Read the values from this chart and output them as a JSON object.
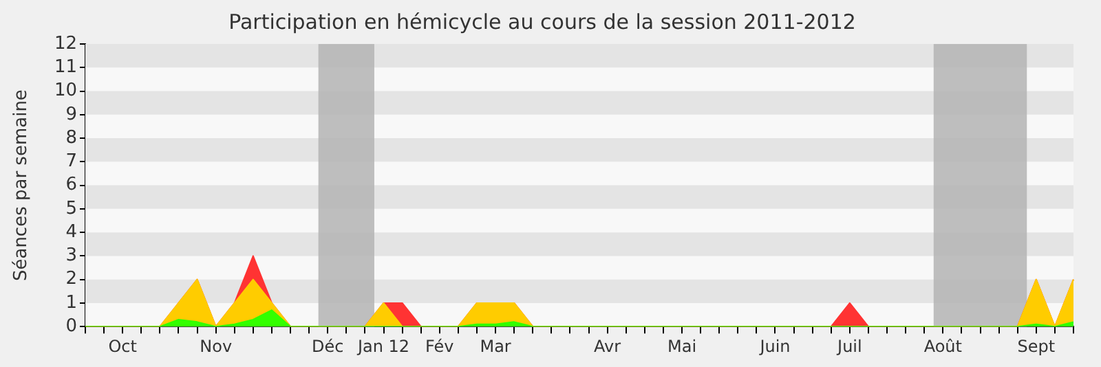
{
  "chart_data": {
    "type": "area",
    "title": "Participation en hémicycle au cours de la session 2011-2012",
    "ylabel": "Séances par semaine",
    "stacked": true,
    "legend": false,
    "marker": "none",
    "categories": [
      null,
      null,
      "Oct",
      null,
      null,
      null,
      null,
      "Nov",
      null,
      null,
      null,
      null,
      null,
      "Déc",
      null,
      null,
      "Jan 12",
      null,
      null,
      "Fév",
      null,
      null,
      "Mar",
      null,
      null,
      null,
      null,
      null,
      "Avr",
      null,
      null,
      null,
      "Mai",
      null,
      null,
      null,
      null,
      "Juin",
      null,
      null,
      null,
      "Juil",
      null,
      null,
      null,
      null,
      "Août",
      null,
      null,
      null,
      null,
      "Sept",
      null,
      null
    ],
    "series": [
      {
        "color": "#33ff00",
        "values": [
          0,
          0,
          0,
          0,
          0,
          0.3,
          0.2,
          0,
          0.1,
          0.3,
          0.7,
          0,
          0,
          0,
          0,
          0,
          0,
          0,
          0,
          0,
          0,
          0.1,
          0.1,
          0.2,
          0,
          0,
          0,
          0,
          0,
          0,
          0,
          0,
          0,
          0,
          0,
          0,
          0,
          0,
          0,
          0,
          0,
          0,
          0,
          0,
          0,
          0,
          0,
          0,
          0,
          0,
          0,
          0.1,
          0,
          0.2
        ]
      },
      {
        "color": "#ffcc00",
        "values": [
          0,
          0,
          0,
          0,
          0,
          0.7,
          1.8,
          0,
          0.9,
          1.7,
          0.3,
          0,
          0,
          0,
          0,
          0,
          1,
          0,
          0,
          0,
          0,
          0.9,
          0.9,
          0.8,
          0,
          0,
          0,
          0,
          0,
          0,
          0,
          0,
          0,
          0,
          0,
          0,
          0,
          0,
          0,
          0,
          0,
          0,
          0,
          0,
          0,
          0,
          0,
          0,
          0,
          0,
          0,
          1.9,
          0,
          1.8
        ]
      },
      {
        "color": "#ff3333",
        "values": [
          0,
          0,
          0,
          0,
          0,
          0,
          0,
          0,
          0,
          1,
          0,
          0,
          0,
          0,
          0,
          0,
          0,
          1,
          0,
          0,
          0,
          0,
          0,
          0,
          0,
          0,
          0,
          0,
          0,
          0,
          0,
          0,
          0,
          0,
          0,
          0,
          0,
          0,
          0,
          0,
          0,
          1,
          0,
          0,
          0,
          0,
          0,
          0,
          0,
          0,
          0,
          0,
          0,
          0
        ]
      }
    ],
    "ylim": [
      0,
      12
    ],
    "yticks": [
      0,
      1,
      2,
      3,
      4,
      5,
      6,
      7,
      8,
      9,
      10,
      11,
      12
    ],
    "bands": [
      {
        "axis": "x",
        "from": "Déc",
        "to": "Jan 12",
        "color": "#b4b4b4"
      },
      {
        "axis": "x",
        "from": "Août",
        "to": "Sept",
        "color": "#b4b4b4"
      }
    ]
  }
}
